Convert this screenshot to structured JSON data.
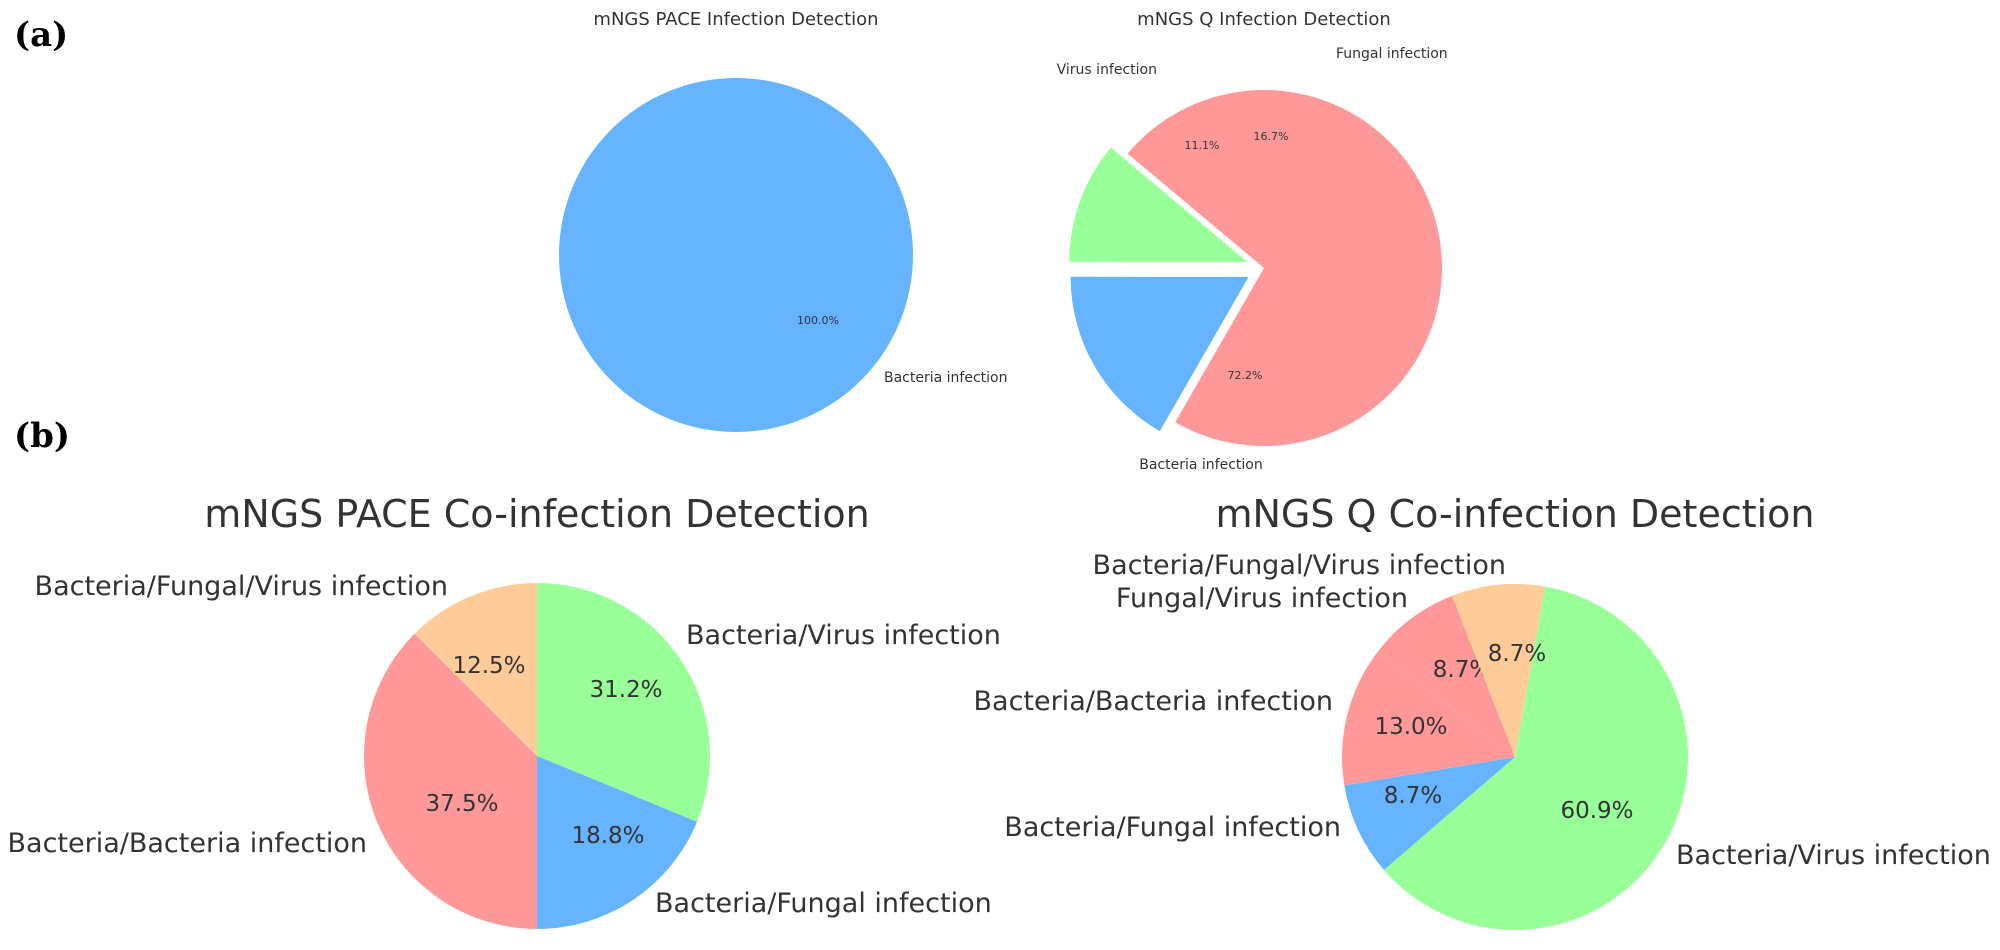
{
  "panels": [
    {
      "letter": "(a)"
    },
    {
      "letter": "(b)"
    }
  ],
  "chart_data": [
    {
      "type": "pie",
      "title": "mNGS PACE Infection Detection",
      "labels": [
        "Bacteria infection"
      ],
      "values": [
        100.0
      ],
      "percent_labels": [
        "100.0%"
      ],
      "colors": [
        "#66b3ff"
      ],
      "explode": [
        0
      ]
    },
    {
      "type": "pie",
      "title": "mNGS Q Infection Detection",
      "labels": [
        "Bacteria infection",
        "Fungal infection",
        "Virus infection"
      ],
      "values": [
        72.2,
        16.7,
        11.1
      ],
      "percent_labels": [
        "72.2%",
        "16.7%",
        "11.1%"
      ],
      "colors": [
        "#ff9999",
        "#66b3ff",
        "#99ff99"
      ],
      "explode": [
        0,
        0.1,
        0.1
      ]
    },
    {
      "type": "pie",
      "title": "mNGS PACE Co-infection Detection",
      "labels": [
        "Bacteria/Virus infection",
        "Bacteria/Fungal infection",
        "Bacteria/Bacteria infection",
        "Bacteria/Fungal/Virus infection"
      ],
      "values": [
        31.2,
        18.8,
        37.5,
        12.5
      ],
      "percent_labels": [
        "31.2%",
        "18.8%",
        "37.5%",
        "12.5%"
      ],
      "colors": [
        "#99ff99",
        "#66b3ff",
        "#ff9999",
        "#ffcc99"
      ],
      "explode": [
        0,
        0,
        0,
        0
      ]
    },
    {
      "type": "pie",
      "title": "mNGS Q Co-infection Detection",
      "labels": [
        "Bacteria/Virus infection",
        "Bacteria/Fungal infection",
        "Bacteria/Bacteria infection",
        "Fungal/Virus infection",
        "Bacteria/Fungal/Virus infection"
      ],
      "values": [
        60.9,
        8.7,
        13.0,
        8.7,
        8.7
      ],
      "percent_labels": [
        "60.9%",
        "8.7%",
        "13.0%",
        "8.7%",
        "8.7%"
      ],
      "colors": [
        "#99ff99",
        "#66b3ff",
        "#ff9999",
        "#ff9999",
        "#ffcc99"
      ],
      "explode": [
        0,
        0,
        0,
        0,
        0
      ]
    }
  ]
}
